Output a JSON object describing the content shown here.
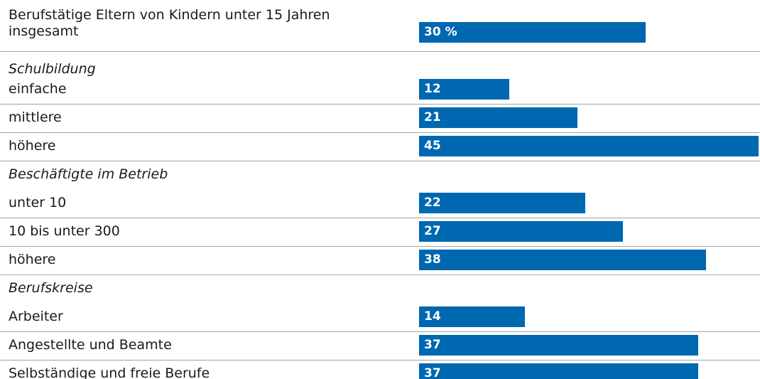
{
  "chart_data": {
    "type": "bar",
    "color": "#0067b1",
    "total": {
      "category": "Berufstätige Eltern von Kindern unter 15 Jahren insgesamt",
      "value": 30,
      "value_label": "30 %"
    },
    "groups": [
      {
        "name": "Schulbildung",
        "categories": [
          "einfache",
          "mittlere",
          "höhere"
        ],
        "values": [
          12,
          21,
          45
        ]
      },
      {
        "name": "Beschäftigte im Betrieb",
        "categories": [
          "unter 10",
          "10 bis unter 300",
          "höhere"
        ],
        "values": [
          22,
          27,
          38
        ]
      },
      {
        "name": "Berufskreise",
        "categories": [
          "Arbeiter",
          "Angestellte und Beamte",
          "Selbständige und freie Berufe"
        ],
        "values": [
          14,
          37,
          37
        ]
      }
    ]
  }
}
